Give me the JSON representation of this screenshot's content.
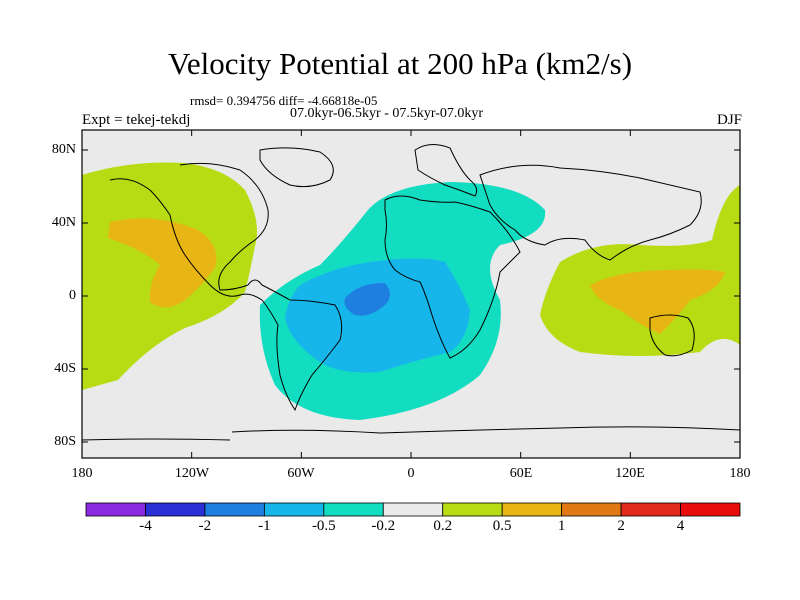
{
  "header": {
    "title": "Velocity Potential at 200 hPa (km2/s)",
    "stats": "rmsd= 0.394756 diff= -4.66818e-05",
    "period": "07.0kyr-06.5kyr - 07.5kyr-07.0kyr",
    "experiment": "Expt = tekej-tekdj",
    "season": "DJF"
  },
  "axes": {
    "y_ticks": [
      "80N",
      "40N",
      "0",
      "40S",
      "80S"
    ],
    "x_ticks": [
      "180",
      "120W",
      "60W",
      "0",
      "60E",
      "120E",
      "180"
    ]
  },
  "colorbar": {
    "labels": [
      "-4",
      "-2",
      "-1",
      "-0.5",
      "-0.2",
      "0.2",
      "0.5",
      "1",
      "2",
      "4"
    ],
    "colors": [
      "#8a2be2",
      "#2b2fd6",
      "#1e7fe0",
      "#17b6ea",
      "#13ddc0",
      "#eaeaea",
      "#b7dc14",
      "#e8b614",
      "#e07814",
      "#e02a1c",
      "#e80c0c"
    ]
  },
  "map_colors": {
    "ocean": "#eaeaea",
    "pos1": "#b7dc14",
    "pos2": "#e8b614",
    "neg1": "#13ddc0",
    "neg2": "#17b6ea",
    "neg3": "#1e7fe0"
  }
}
